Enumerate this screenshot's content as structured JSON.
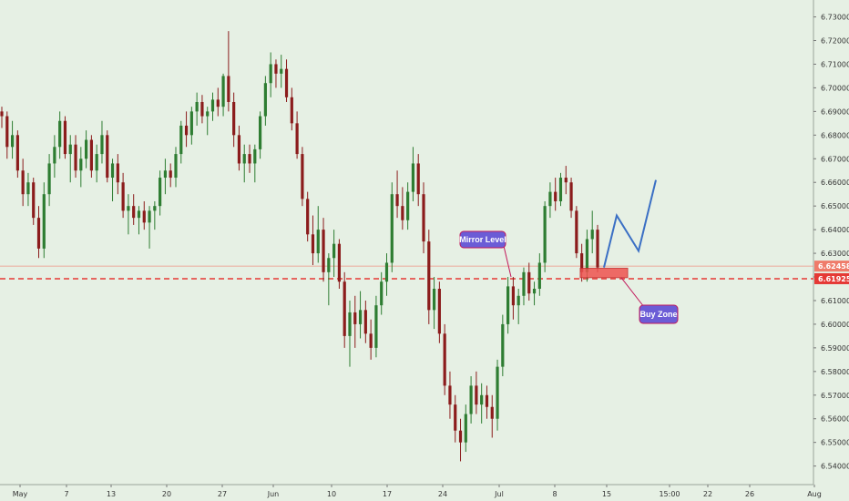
{
  "chart_data": {
    "type": "candlestick",
    "ylim": [
      6.536,
      6.736
    ],
    "y_ticks": [
      "6.54000",
      "6.55000",
      "6.56000",
      "6.57000",
      "6.58000",
      "6.59000",
      "6.60000",
      "6.61000",
      "6.62000",
      "6.63000",
      "6.64000",
      "6.65000",
      "6.66000",
      "6.67000",
      "6.68000",
      "6.69000",
      "6.70000",
      "6.71000",
      "6.72000",
      "6.73000"
    ],
    "x_ticks": [
      "May",
      "7",
      "13",
      "20",
      "27",
      "Jun",
      "10",
      "17",
      "24",
      "Jul",
      "8",
      "15",
      "15:00",
      "22",
      "26",
      "Aug"
    ],
    "current_price_label": "6.62458",
    "mirror_level_label": "6.61925",
    "annotations": {
      "mirror_level": "Mirror Level",
      "buy_zone": "Buy Zone"
    },
    "candles": [
      [
        6.69,
        6.692,
        6.683,
        6.688
      ],
      [
        6.688,
        6.69,
        6.67,
        6.675
      ],
      [
        6.675,
        6.686,
        6.67,
        6.68
      ],
      [
        6.68,
        6.682,
        6.662,
        6.665
      ],
      [
        6.665,
        6.67,
        6.65,
        6.655
      ],
      [
        6.655,
        6.664,
        6.65,
        6.66
      ],
      [
        6.66,
        6.662,
        6.642,
        6.645
      ],
      [
        6.645,
        6.65,
        6.628,
        6.632
      ],
      [
        6.632,
        6.66,
        6.628,
        6.655
      ],
      [
        6.655,
        6.672,
        6.65,
        6.668
      ],
      [
        6.668,
        6.68,
        6.662,
        6.675
      ],
      [
        6.675,
        6.69,
        6.67,
        6.686
      ],
      [
        6.686,
        6.688,
        6.67,
        6.672
      ],
      [
        6.672,
        6.68,
        6.66,
        6.676
      ],
      [
        6.676,
        6.68,
        6.662,
        6.665
      ],
      [
        6.665,
        6.675,
        6.658,
        6.67
      ],
      [
        6.67,
        6.682,
        6.666,
        6.678
      ],
      [
        6.678,
        6.68,
        6.662,
        6.665
      ],
      [
        6.665,
        6.676,
        6.66,
        6.672
      ],
      [
        6.672,
        6.686,
        6.668,
        6.68
      ],
      [
        6.68,
        6.682,
        6.66,
        6.662
      ],
      [
        6.662,
        6.67,
        6.652,
        6.668
      ],
      [
        6.668,
        6.672,
        6.655,
        6.66
      ],
      [
        6.66,
        6.664,
        6.645,
        6.648
      ],
      [
        6.648,
        6.655,
        6.638,
        6.65
      ],
      [
        6.65,
        6.655,
        6.642,
        6.645
      ],
      [
        6.645,
        6.65,
        6.638,
        6.648
      ],
      [
        6.648,
        6.652,
        6.64,
        6.643
      ],
      [
        6.643,
        6.65,
        6.632,
        6.648
      ],
      [
        6.648,
        6.652,
        6.64,
        6.65
      ],
      [
        6.65,
        6.665,
        6.646,
        6.662
      ],
      [
        6.662,
        6.67,
        6.655,
        6.665
      ],
      [
        6.665,
        6.668,
        6.658,
        6.662
      ],
      [
        6.662,
        6.675,
        6.658,
        6.672
      ],
      [
        6.672,
        6.686,
        6.668,
        6.684
      ],
      [
        6.684,
        6.69,
        6.675,
        6.68
      ],
      [
        6.68,
        6.692,
        6.676,
        6.69
      ],
      [
        6.69,
        6.698,
        6.684,
        6.694
      ],
      [
        6.694,
        6.697,
        6.685,
        6.688
      ],
      [
        6.688,
        6.692,
        6.68,
        6.69
      ],
      [
        6.69,
        6.698,
        6.686,
        6.695
      ],
      [
        6.695,
        6.7,
        6.688,
        6.692
      ],
      [
        6.692,
        6.706,
        6.688,
        6.705
      ],
      [
        6.705,
        6.724,
        6.69,
        6.694
      ],
      [
        6.694,
        6.698,
        6.675,
        6.68
      ],
      [
        6.68,
        6.684,
        6.665,
        6.668
      ],
      [
        6.668,
        6.676,
        6.66,
        6.672
      ],
      [
        6.672,
        6.676,
        6.664,
        6.668
      ],
      [
        6.668,
        6.676,
        6.66,
        6.674
      ],
      [
        6.674,
        6.69,
        6.67,
        6.688
      ],
      [
        6.688,
        6.705,
        6.684,
        6.702
      ],
      [
        6.702,
        6.715,
        6.696,
        6.71
      ],
      [
        6.71,
        6.712,
        6.7,
        6.706
      ],
      [
        6.706,
        6.714,
        6.7,
        6.708
      ],
      [
        6.708,
        6.712,
        6.694,
        6.696
      ],
      [
        6.696,
        6.7,
        6.682,
        6.685
      ],
      [
        6.685,
        6.69,
        6.67,
        6.672
      ],
      [
        6.672,
        6.675,
        6.65,
        6.653
      ],
      [
        6.653,
        6.656,
        6.635,
        6.638
      ],
      [
        6.638,
        6.646,
        6.625,
        6.63
      ],
      [
        6.63,
        6.65,
        6.626,
        6.64
      ],
      [
        6.64,
        6.645,
        6.618,
        6.622
      ],
      [
        6.622,
        6.63,
        6.608,
        6.628
      ],
      [
        6.628,
        6.64,
        6.62,
        6.634
      ],
      [
        6.634,
        6.636,
        6.615,
        6.618
      ],
      [
        6.618,
        6.622,
        6.59,
        6.595
      ],
      [
        6.595,
        6.61,
        6.582,
        6.605
      ],
      [
        6.605,
        6.612,
        6.59,
        6.6
      ],
      [
        6.6,
        6.614,
        6.594,
        6.606
      ],
      [
        6.606,
        6.61,
        6.592,
        6.596
      ],
      [
        6.596,
        6.602,
        6.585,
        6.59
      ],
      [
        6.59,
        6.612,
        6.586,
        6.608
      ],
      [
        6.608,
        6.622,
        6.604,
        6.618
      ],
      [
        6.618,
        6.63,
        6.612,
        6.626
      ],
      [
        6.626,
        6.66,
        6.622,
        6.655
      ],
      [
        6.655,
        6.665,
        6.645,
        6.65
      ],
      [
        6.65,
        6.658,
        6.64,
        6.644
      ],
      [
        6.644,
        6.66,
        6.64,
        6.656
      ],
      [
        6.656,
        6.675,
        6.652,
        6.668
      ],
      [
        6.668,
        6.672,
        6.65,
        6.655
      ],
      [
        6.655,
        6.66,
        6.63,
        6.635
      ],
      [
        6.635,
        6.64,
        6.6,
        6.606
      ],
      [
        6.606,
        6.62,
        6.598,
        6.615
      ],
      [
        6.615,
        6.618,
        6.592,
        6.596
      ],
      [
        6.596,
        6.6,
        6.57,
        6.574
      ],
      [
        6.574,
        6.58,
        6.56,
        6.566
      ],
      [
        6.566,
        6.57,
        6.55,
        6.555
      ],
      [
        6.555,
        6.56,
        6.542,
        6.55
      ],
      [
        6.55,
        6.566,
        6.546,
        6.562
      ],
      [
        6.562,
        6.578,
        6.558,
        6.574
      ],
      [
        6.574,
        6.58,
        6.562,
        6.566
      ],
      [
        6.566,
        6.575,
        6.558,
        6.57
      ],
      [
        6.57,
        6.574,
        6.56,
        6.565
      ],
      [
        6.565,
        6.57,
        6.552,
        6.56
      ],
      [
        6.56,
        6.585,
        6.555,
        6.582
      ],
      [
        6.582,
        6.604,
        6.578,
        6.6
      ],
      [
        6.6,
        6.62,
        6.596,
        6.616
      ],
      [
        6.616,
        6.62,
        6.602,
        6.608
      ],
      [
        6.608,
        6.615,
        6.6,
        6.612
      ],
      [
        6.612,
        6.624,
        6.608,
        6.622
      ],
      [
        6.622,
        6.626,
        6.61,
        6.613
      ],
      [
        6.613,
        6.618,
        6.608,
        6.615
      ],
      [
        6.615,
        6.63,
        6.612,
        6.626
      ],
      [
        6.626,
        6.652,
        6.622,
        6.65
      ],
      [
        6.65,
        6.66,
        6.645,
        6.656
      ],
      [
        6.656,
        6.662,
        6.648,
        6.652
      ],
      [
        6.652,
        6.664,
        6.65,
        6.662
      ],
      [
        6.662,
        6.667,
        6.655,
        6.66
      ],
      [
        6.66,
        6.662,
        6.645,
        6.648
      ],
      [
        6.648,
        6.65,
        6.628,
        6.63
      ],
      [
        6.63,
        6.634,
        6.618,
        6.622
      ],
      [
        6.622,
        6.64,
        6.618,
        6.636
      ],
      [
        6.636,
        6.648,
        6.63,
        6.64
      ],
      [
        6.64,
        6.642,
        6.622,
        6.624
      ]
    ],
    "projection": [
      [
        6.624,
        6.6245
      ],
      [
        6.646,
        6.6465
      ],
      [
        6.631,
        6.631
      ],
      [
        6.661,
        6.661
      ]
    ]
  },
  "colors": {
    "up": "#2e7d32",
    "down": "#8b1c1c",
    "mirror_line": "#e53935",
    "buy_zone": "#ef5350",
    "callout_fill": "#6b5cd6",
    "callout_border": "#c2185b",
    "projection": "#3a6fc4",
    "current_price_tag": "#ef7b6a",
    "mirror_price_tag": "#e53935"
  }
}
